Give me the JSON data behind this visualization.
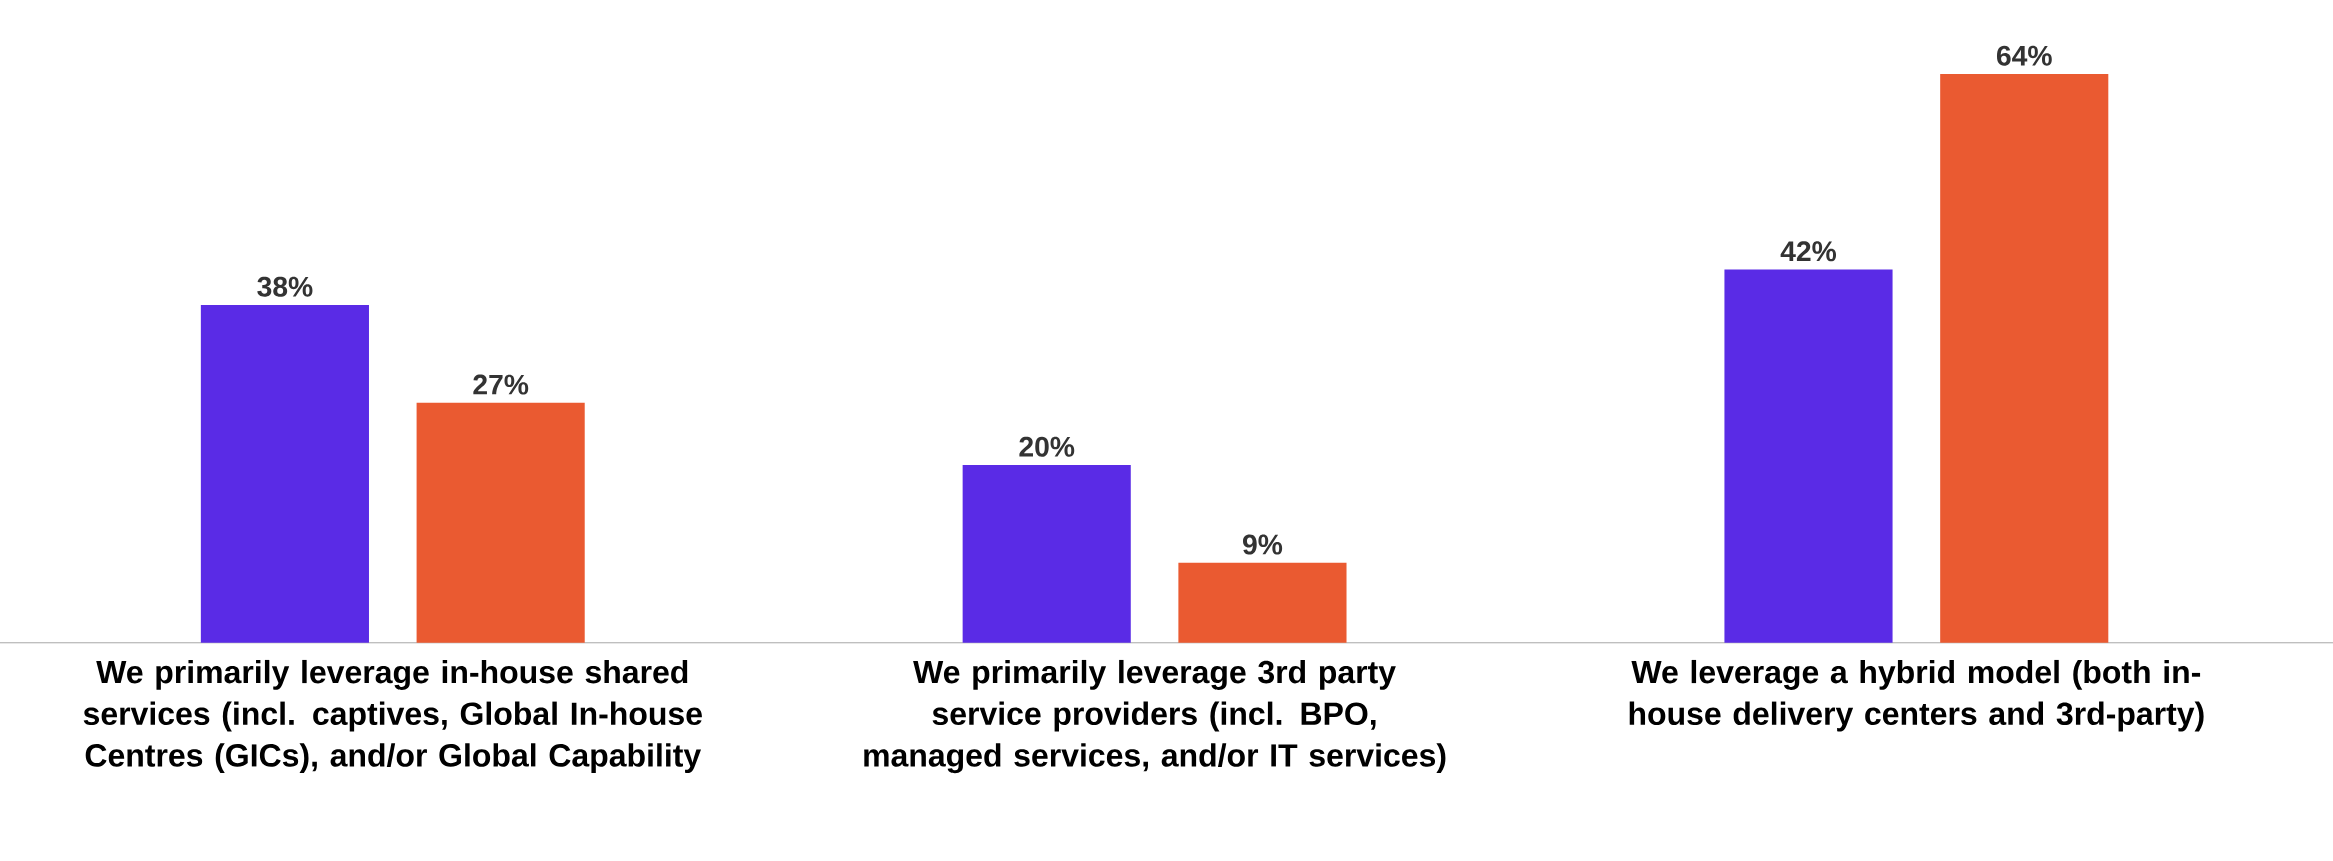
{
  "chart_data": {
    "type": "bar",
    "categories": [
      "We primarily leverage in-house shared services (incl. captives, Global In-house Centres (GICs), and/or Global Capability",
      "We primarily leverage 3rd party service providers (incl. BPO, managed services, and/or IT services)",
      "We leverage a hybrid model (both in-house delivery centers and 3rd-party)"
    ],
    "series": [
      {
        "color": "#5a2be6",
        "values": [
          38,
          20,
          42
        ],
        "value_labels": [
          "38%",
          "20%",
          "42%"
        ]
      },
      {
        "color": "#ea5a31",
        "values": [
          27,
          9,
          64
        ],
        "value_labels": [
          "27%",
          "9%",
          "64%"
        ]
      }
    ]
  }
}
